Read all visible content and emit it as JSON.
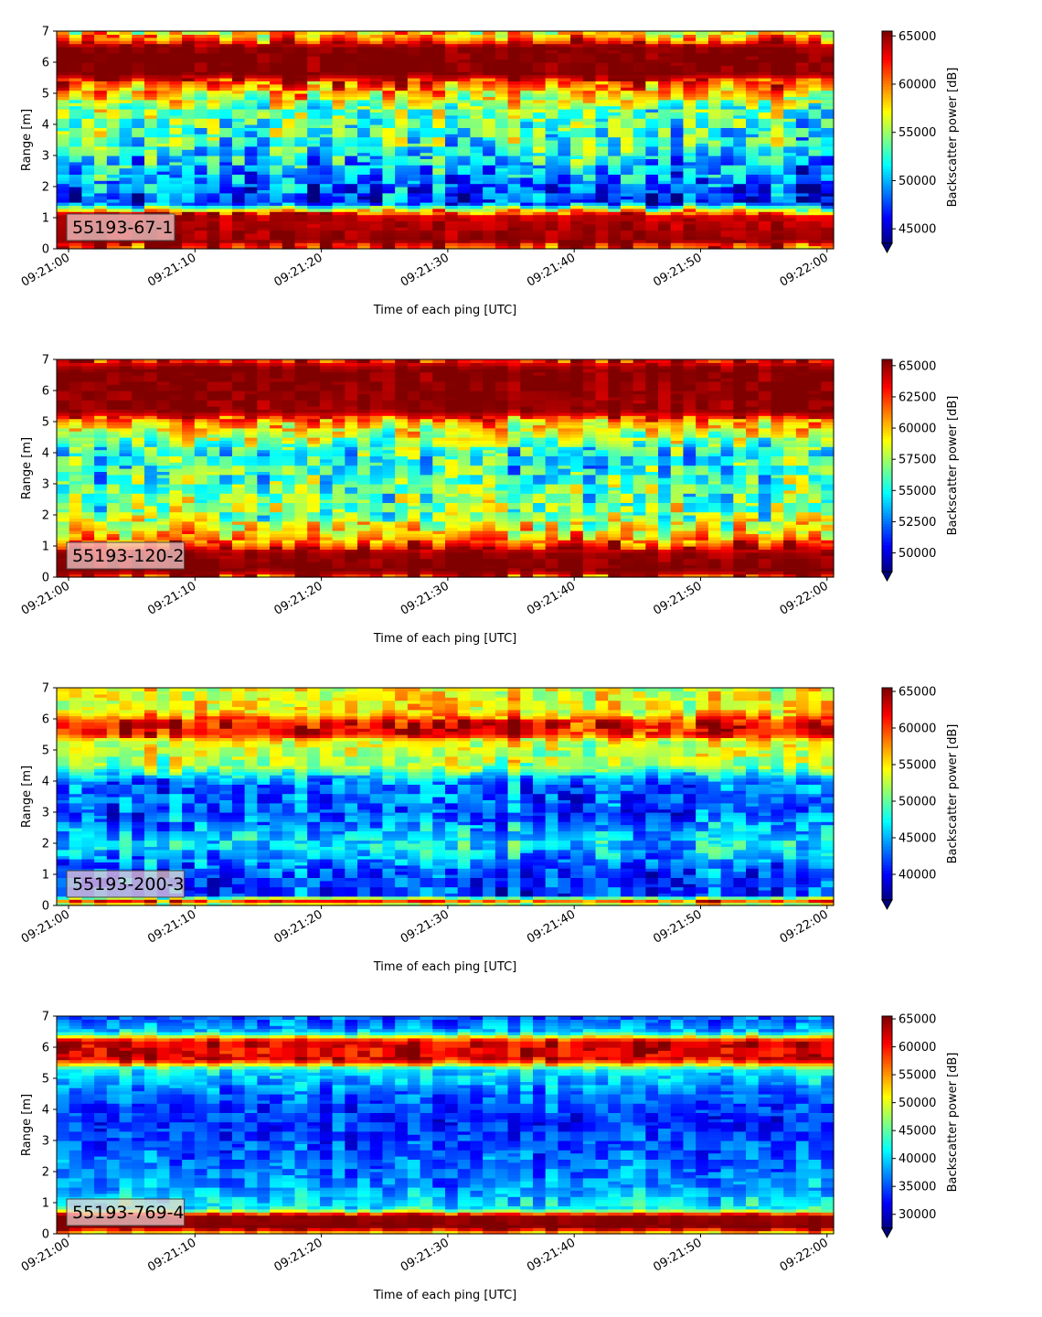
{
  "chart_data": [
    {
      "type": "heatmap",
      "label": "55193-67-1",
      "xlabel": "Time of each ping [UTC]",
      "ylabel": "Range [m]",
      "colorbar_label": "Backscatter power [dB]",
      "colormap": "jet",
      "x_ticks": [
        "09:21:00",
        "09:21:10",
        "09:21:20",
        "09:21:30",
        "09:21:40",
        "09:21:50",
        "09:22:00"
      ],
      "y_ticks": [
        "0",
        "1",
        "2",
        "3",
        "4",
        "5",
        "6",
        "7"
      ],
      "ylim": [
        0,
        7
      ],
      "clim": [
        43500,
        65500
      ],
      "colorbar_ticks": [
        "45000",
        "50000",
        "55000",
        "60000",
        "65000"
      ],
      "colorbar_tick_values": [
        45000,
        50000,
        55000,
        60000,
        65000
      ],
      "profile": [
        {
          "r": 0.0,
          "v": 62000
        },
        {
          "r": 0.25,
          "v": 65000
        },
        {
          "r": 1.1,
          "v": 64000
        },
        {
          "r": 1.5,
          "v": 47000
        },
        {
          "r": 2.5,
          "v": 50000
        },
        {
          "r": 3.5,
          "v": 53000
        },
        {
          "r": 4.5,
          "v": 54000
        },
        {
          "r": 5.0,
          "v": 58000
        },
        {
          "r": 5.5,
          "v": 63000
        },
        {
          "r": 5.6,
          "v": 65500
        },
        {
          "r": 6.5,
          "v": 65500
        },
        {
          "r": 6.7,
          "v": 61000
        },
        {
          "r": 7.0,
          "v": 57000
        }
      ],
      "noise": 5500
    },
    {
      "type": "heatmap",
      "label": "55193-120-2",
      "xlabel": "Time of each ping [UTC]",
      "ylabel": "Range [m]",
      "colorbar_label": "Backscatter power [dB]",
      "colormap": "jet",
      "x_ticks": [
        "09:21:00",
        "09:21:10",
        "09:21:20",
        "09:21:30",
        "09:21:40",
        "09:21:50",
        "09:22:00"
      ],
      "y_ticks": [
        "0",
        "1",
        "2",
        "3",
        "4",
        "5",
        "6",
        "7"
      ],
      "ylim": [
        0,
        7
      ],
      "clim": [
        48500,
        65500
      ],
      "colorbar_ticks": [
        "50000",
        "52500",
        "55000",
        "57500",
        "60000",
        "62500",
        "65000"
      ],
      "colorbar_tick_values": [
        50000,
        52500,
        55000,
        57500,
        60000,
        62500,
        65000
      ],
      "profile": [
        {
          "r": 0.0,
          "v": 62000
        },
        {
          "r": 0.2,
          "v": 65500
        },
        {
          "r": 0.8,
          "v": 65000
        },
        {
          "r": 1.3,
          "v": 60000
        },
        {
          "r": 2.0,
          "v": 57000
        },
        {
          "r": 3.0,
          "v": 56000
        },
        {
          "r": 4.0,
          "v": 55000
        },
        {
          "r": 5.0,
          "v": 60000
        },
        {
          "r": 5.3,
          "v": 65000
        },
        {
          "r": 6.7,
          "v": 65500
        },
        {
          "r": 7.0,
          "v": 63000
        }
      ],
      "noise": 4000
    },
    {
      "type": "heatmap",
      "label": "55193-200-3",
      "xlabel": "Time of each ping [UTC]",
      "ylabel": "Range [m]",
      "colorbar_label": "Backscatter power [dB]",
      "colormap": "jet",
      "x_ticks": [
        "09:21:00",
        "09:21:10",
        "09:21:20",
        "09:21:30",
        "09:21:40",
        "09:21:50",
        "09:22:00"
      ],
      "y_ticks": [
        "0",
        "1",
        "2",
        "3",
        "4",
        "5",
        "6",
        "7"
      ],
      "ylim": [
        0,
        7
      ],
      "clim": [
        36500,
        65500
      ],
      "colorbar_ticks": [
        "40000",
        "45000",
        "50000",
        "55000",
        "60000",
        "65000"
      ],
      "colorbar_tick_values": [
        40000,
        45000,
        50000,
        55000,
        60000,
        65000
      ],
      "profile": [
        {
          "r": 0.0,
          "v": 50000
        },
        {
          "r": 0.15,
          "v": 60000
        },
        {
          "r": 0.35,
          "v": 42000
        },
        {
          "r": 1.0,
          "v": 42000
        },
        {
          "r": 2.0,
          "v": 47000
        },
        {
          "r": 3.0,
          "v": 42000
        },
        {
          "r": 4.0,
          "v": 44000
        },
        {
          "r": 4.5,
          "v": 52000
        },
        {
          "r": 5.3,
          "v": 54000
        },
        {
          "r": 5.5,
          "v": 62000
        },
        {
          "r": 5.9,
          "v": 62000
        },
        {
          "r": 6.2,
          "v": 55000
        },
        {
          "r": 7.0,
          "v": 54000
        }
      ],
      "noise": 5000
    },
    {
      "type": "heatmap",
      "label": "55193-769-4",
      "xlabel": "Time of each ping [UTC]",
      "ylabel": "Range [m]",
      "colorbar_label": "Backscatter power [dB]",
      "colormap": "jet",
      "x_ticks": [
        "09:21:00",
        "09:21:10",
        "09:21:20",
        "09:21:30",
        "09:21:40",
        "09:21:50",
        "09:22:00"
      ],
      "y_ticks": [
        "0",
        "1",
        "2",
        "3",
        "4",
        "5",
        "6",
        "7"
      ],
      "ylim": [
        0,
        7
      ],
      "clim": [
        27500,
        65500
      ],
      "colorbar_ticks": [
        "30000",
        "35000",
        "40000",
        "45000",
        "50000",
        "55000",
        "60000",
        "65000"
      ],
      "colorbar_tick_values": [
        30000,
        35000,
        40000,
        45000,
        50000,
        55000,
        60000,
        65000
      ],
      "profile": [
        {
          "r": 0.0,
          "v": 50000
        },
        {
          "r": 0.2,
          "v": 65500
        },
        {
          "r": 0.6,
          "v": 65000
        },
        {
          "r": 0.8,
          "v": 42000
        },
        {
          "r": 1.5,
          "v": 38000
        },
        {
          "r": 2.5,
          "v": 36000
        },
        {
          "r": 3.5,
          "v": 34000
        },
        {
          "r": 4.5,
          "v": 36000
        },
        {
          "r": 5.3,
          "v": 42000
        },
        {
          "r": 5.6,
          "v": 62000
        },
        {
          "r": 6.2,
          "v": 62000
        },
        {
          "r": 6.5,
          "v": 40000
        },
        {
          "r": 7.0,
          "v": 35000
        }
      ],
      "noise": 5000
    }
  ]
}
